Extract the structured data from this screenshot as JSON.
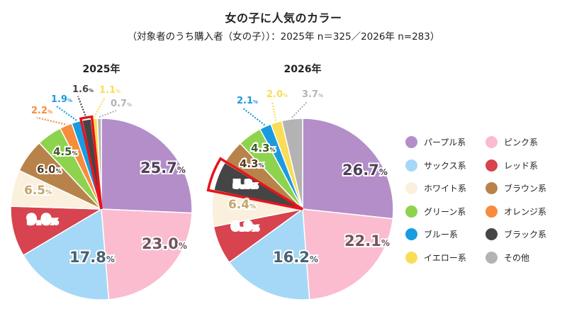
{
  "title": "女の子に人気のカラー",
  "subtitle": "（対象者のうち購入者（女の子））：2025年 n＝325／2026年 n=283）",
  "colors": {
    "パープル系": "#b48ec8",
    "ピンク系": "#fbbcd0",
    "サックス系": "#a4d8f6",
    "レッド系": "#d7434f",
    "ホワイト系": "#faf0dd",
    "ブラウン系": "#b8834a",
    "グリーン系": "#8ed34e",
    "オレンジ系": "#f78c3c",
    "ブルー系": "#1a9be0",
    "ブラック系": "#454545",
    "イエロー系": "#f9dd58",
    "その他": "#b3b3b3"
  },
  "legend": [
    "パープル系",
    "ピンク系",
    "サックス系",
    "レッド系",
    "ホワイト系",
    "ブラウン系",
    "グリーン系",
    "オレンジ系",
    "ブルー系",
    "ブラック系",
    "イエロー系",
    "その他"
  ],
  "chart_data": [
    {
      "type": "pie",
      "title": "2025年",
      "unit": "%",
      "highlight": "ブラック系",
      "slices": [
        {
          "name": "パープル系",
          "value": 25.7,
          "label": "25.7"
        },
        {
          "name": "ピンク系",
          "value": 23.0,
          "label": "23.0"
        },
        {
          "name": "サックス系",
          "value": 17.8,
          "label": "17.8"
        },
        {
          "name": "レッド系",
          "value": 9.0,
          "label": "9.0"
        },
        {
          "name": "ホワイト系",
          "value": 6.5,
          "label": "6.5"
        },
        {
          "name": "ブラウン系",
          "value": 6.0,
          "label": "6.0"
        },
        {
          "name": "グリーン系",
          "value": 4.5,
          "label": "4.5"
        },
        {
          "name": "オレンジ系",
          "value": 2.2,
          "label": "2.2"
        },
        {
          "name": "ブルー系",
          "value": 1.9,
          "label": "1.9"
        },
        {
          "name": "ブラック系",
          "value": 1.6,
          "label": "1.6"
        },
        {
          "name": "イエロー系",
          "value": 1.1,
          "label": "1.1"
        },
        {
          "name": "その他",
          "value": 0.7,
          "label": "0.7"
        }
      ]
    },
    {
      "type": "pie",
      "title": "2026年",
      "unit": "%",
      "highlight": "ブラック系",
      "slices": [
        {
          "name": "パープル系",
          "value": 26.7,
          "label": "26.7"
        },
        {
          "name": "ピンク系",
          "value": 22.1,
          "label": "22.1"
        },
        {
          "name": "サックス系",
          "value": 16.2,
          "label": "16.2"
        },
        {
          "name": "レッド系",
          "value": 6.9,
          "label": "6.9"
        },
        {
          "name": "ホワイト系",
          "value": 6.4,
          "label": "6.4"
        },
        {
          "name": "ブラック系",
          "value": 5.3,
          "label": "5.3"
        },
        {
          "name": "ブラウン系",
          "value": 4.3,
          "label": "4.3"
        },
        {
          "name": "グリーン系",
          "value": 4.3,
          "label": "4.3"
        },
        {
          "name": "ブルー系",
          "value": 2.1,
          "label": "2.1"
        },
        {
          "name": "イエロー系",
          "value": 2.0,
          "label": "2.0"
        },
        {
          "name": "その他",
          "value": 3.7,
          "label": "3.7"
        }
      ]
    }
  ]
}
